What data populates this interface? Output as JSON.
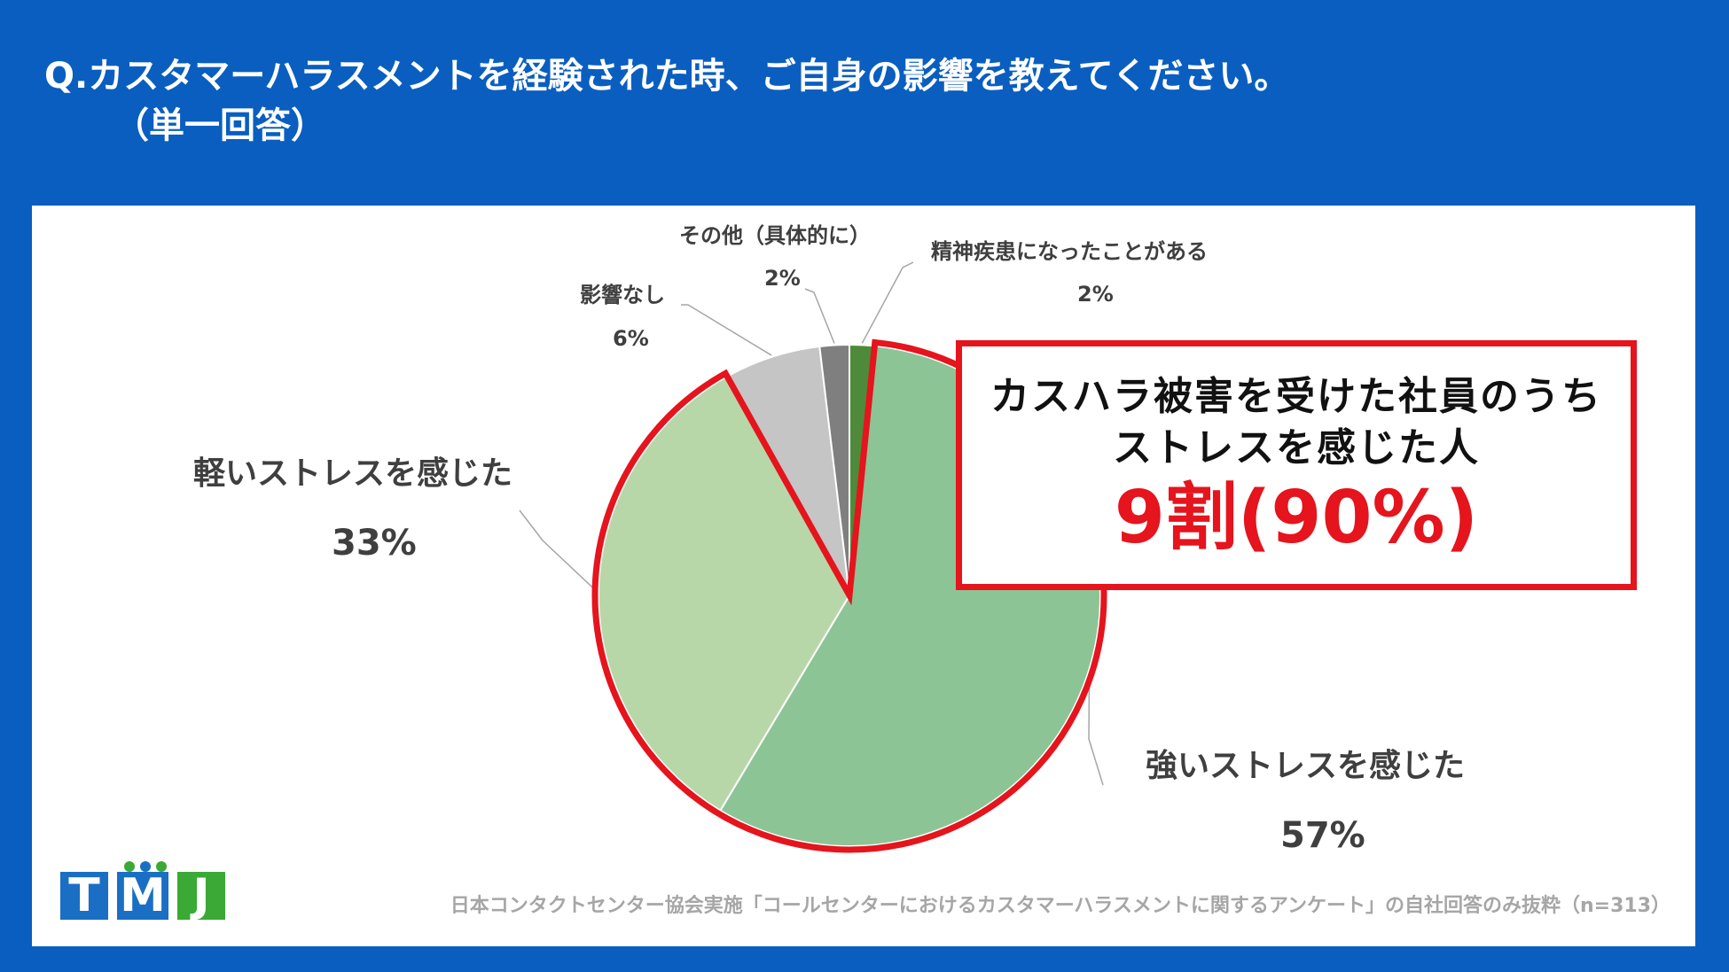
{
  "header": {
    "title": "Q.カスタマーハラスメントを経験された時、ご自身の影響を教えてください。",
    "subtitle": "（単一回答）"
  },
  "callout": {
    "line1": "カスハラ被害を受けた社員のうち",
    "line2": "ストレスを感じた人",
    "highlight": "9割(90%)"
  },
  "logo": {
    "letters": [
      "T",
      "M",
      "J"
    ]
  },
  "footer": {
    "source": "日本コンタクトセンター協会実施「コールセンターにおけるカスタマーハラスメントに関するアンケート」の自社回答のみ抜粋（n=313）"
  },
  "colors": {
    "background": "#0a5ec0",
    "highlight_red": "#e5141d",
    "logo_blue": "#1a6fc4",
    "logo_green": "#3aa935"
  },
  "chart_data": {
    "type": "pie",
    "start_angle_deg": 0,
    "direction": "clockwise",
    "slices": [
      {
        "label": "精神疾患になったことがある",
        "value_label": "2%",
        "value": 1.6,
        "color": "#4e8a3a"
      },
      {
        "label": "強いストレスを感じた",
        "value_label": "57%",
        "value": 57.0,
        "color": "#8cc496"
      },
      {
        "label": "軽いストレスを感じた",
        "value_label": "33%",
        "value": 33.3,
        "color": "#b8d7a8"
      },
      {
        "label": "影響なし",
        "value_label": "6%",
        "value": 6.2,
        "color": "#c5c5c5"
      },
      {
        "label": "その他（具体的に）",
        "value_label": "2%",
        "value": 1.9,
        "color": "#7f7f7f"
      }
    ],
    "highlighted_slices": [
      "強いストレスを感じた",
      "軽いストレスを感じた"
    ]
  }
}
